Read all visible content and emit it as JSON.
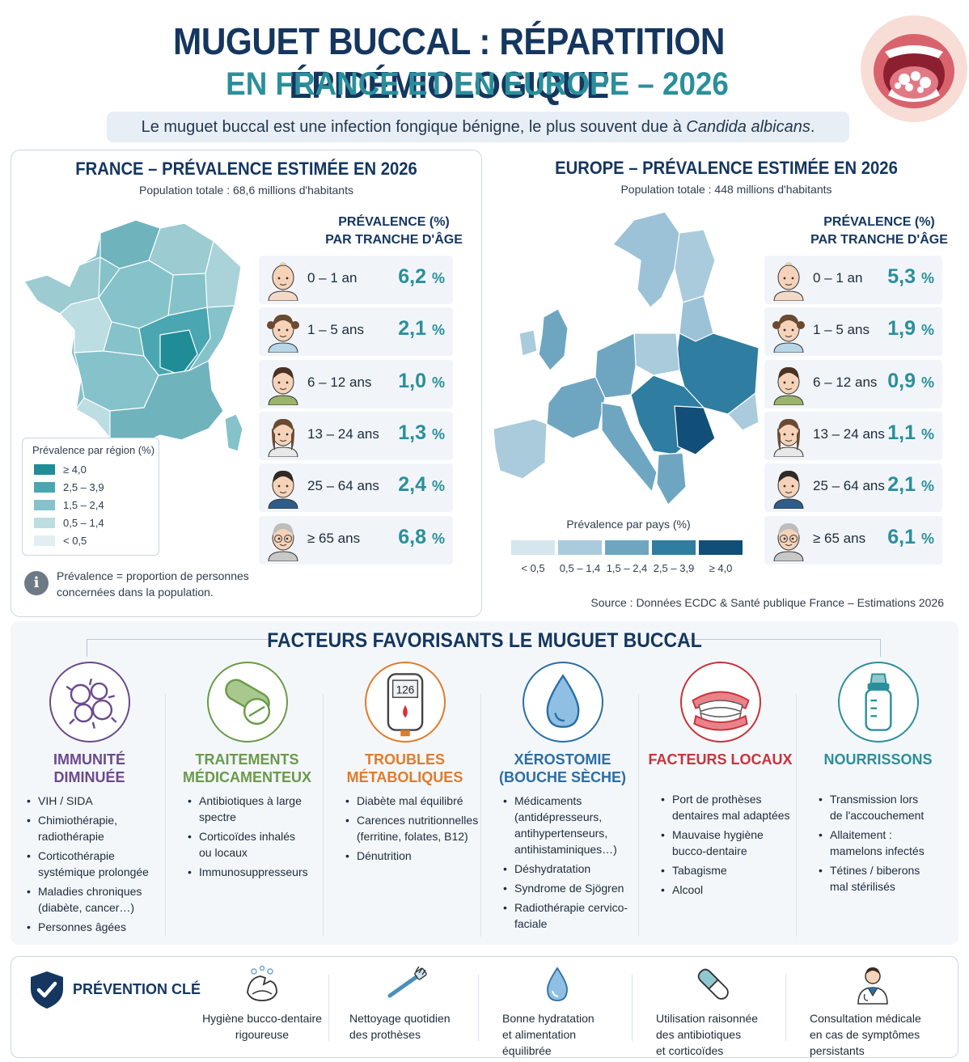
{
  "header": {
    "title_line1": "MUGUET BUCCAL : RÉPARTITION ÉPIDÉMIOLOGIQUE",
    "title_line2": "EN FRANCE ET EN EUROPE – 2026",
    "subtitle_prefix": "Le muguet buccal est une infection fongique bénigne, le plus souvent due à ",
    "subtitle_italic": "Candida albicans",
    "subtitle_suffix": "."
  },
  "france": {
    "title": "FRANCE – PRÉVALENCE ESTIMÉE EN 2026",
    "population": "Population totale : 68,6 millions d'habitants",
    "age_header_line1": "PRÉVALENCE (%)",
    "age_header_line2": "PAR TRANCHE D'ÂGE",
    "age_groups": [
      {
        "label": "0 – 1 an",
        "value": "6,2",
        "unit": "%"
      },
      {
        "label": "1 – 5 ans",
        "value": "2,1",
        "unit": "%"
      },
      {
        "label": "6 – 12 ans",
        "value": "1,0",
        "unit": "%"
      },
      {
        "label": "13 – 24 ans",
        "value": "1,3",
        "unit": "%"
      },
      {
        "label": "25 – 64 ans",
        "value": "2,4",
        "unit": "%"
      },
      {
        "label": "≥ 65 ans",
        "value": "6,8",
        "unit": "%"
      }
    ],
    "legend_title": "Prévalence par région (%)",
    "legend": [
      {
        "label": "≥ 4,0",
        "color": "#1f8c96"
      },
      {
        "label": "2,5 – 3,9",
        "color": "#4aa6b0"
      },
      {
        "label": "1,5 – 2,4",
        "color": "#86c2ca"
      },
      {
        "label": "0,5 – 1,4",
        "color": "#bcdde2"
      },
      {
        "label": "< 0,5",
        "color": "#e2eff2"
      }
    ],
    "note_line1": "Prévalence = proportion de personnes",
    "note_line2": "concernées dans la population."
  },
  "europe": {
    "title": "EUROPE – PRÉVALENCE ESTIMÉE EN 2026",
    "population": "Population totale : 448 millions d'habitants",
    "age_header_line1": "PRÉVALENCE (%)",
    "age_header_line2": "PAR TRANCHE D'ÂGE",
    "age_groups": [
      {
        "label": "0 – 1 an",
        "value": "5,3",
        "unit": "%"
      },
      {
        "label": "1 – 5 ans",
        "value": "1,9",
        "unit": "%"
      },
      {
        "label": "6 – 12 ans",
        "value": "0,9",
        "unit": "%"
      },
      {
        "label": "13 – 24 ans",
        "value": "1,1",
        "unit": "%"
      },
      {
        "label": "25 – 64 ans",
        "value": "2,1",
        "unit": "%"
      },
      {
        "label": "≥ 65 ans",
        "value": "6,1",
        "unit": "%"
      }
    ],
    "legend_title": "Prévalence par pays (%)",
    "legend": [
      {
        "label": "< 0,5",
        "color": "#d6e6ef"
      },
      {
        "label": "0,5 – 1,4",
        "color": "#a9cbdc"
      },
      {
        "label": "1,5 – 2,4",
        "color": "#6ea6c2"
      },
      {
        "label": "2,5 – 3,9",
        "color": "#2f7da0"
      },
      {
        "label": "≥ 4,0",
        "color": "#124f78"
      }
    ],
    "source": "Source : Données ECDC & Santé publique France – Estimations 2026"
  },
  "factors": {
    "title": "FACTEURS FAVORISANTS LE MUGUET BUCCAL",
    "items": [
      {
        "title_line1": "IMMUNITÉ",
        "title_line2": "DIMINUÉE",
        "color": "#6b4a8c",
        "icon": "virus-icon",
        "bullets": [
          [
            "VIH / SIDA"
          ],
          [
            "Chimiothérapie,",
            "radiothérapie"
          ],
          [
            "Corticothérapie",
            "systémique prolongée"
          ],
          [
            "Maladies chroniques",
            "(diabète, cancer…)"
          ],
          [
            "Personnes âgées"
          ]
        ]
      },
      {
        "title_line1": "TRAITEMENTS",
        "title_line2": "MÉDICAMENTEUX",
        "color": "#6a9a4a",
        "icon": "pill-icon",
        "bullets": [
          [
            "Antibiotiques à large",
            "spectre"
          ],
          [
            "Corticoïdes inhalés",
            "ou locaux"
          ],
          [
            "Immunosuppresseurs"
          ]
        ]
      },
      {
        "title_line1": "TROUBLES",
        "title_line2": "MÉTABOLIQUES",
        "color": "#e07b2a",
        "icon": "glucometer-icon",
        "glucose": "126",
        "bullets": [
          [
            "Diabète mal équilibré"
          ],
          [
            "Carences nutritionnelles",
            "(ferritine, folates, B12)"
          ],
          [
            "Dénutrition"
          ]
        ]
      },
      {
        "title_line1": "XÉROSTOMIE",
        "title_line2": "(BOUCHE SÈCHE)",
        "color": "#2a6ea5",
        "icon": "water-drop-icon",
        "bullets": [
          [
            "Médicaments",
            "(antidépresseurs,",
            "antihypertenseurs,",
            "antihistaminiques…)"
          ],
          [
            "Déshydratation"
          ],
          [
            "Syndrome de Sjögren"
          ],
          [
            "Radiothérapie cervico-",
            "faciale"
          ]
        ]
      },
      {
        "title_line1": "FACTEURS LOCAUX",
        "title_line2": "",
        "color": "#c8323a",
        "icon": "denture-icon",
        "bullets": [
          [
            "Port de prothèses",
            "dentaires mal adaptées"
          ],
          [
            "Mauvaise hygiène",
            "bucco-dentaire"
          ],
          [
            "Tabagisme"
          ],
          [
            "Alcool"
          ]
        ]
      },
      {
        "title_line1": "NOURRISSONS",
        "title_line2": "",
        "color": "#2a8f9b",
        "icon": "baby-bottle-icon",
        "bullets": [
          [
            "Transmission lors",
            "de l'accouchement"
          ],
          [
            "Allaitement :",
            "mamelons infectés"
          ],
          [
            "Tétines / biberons",
            "mal stérilisés"
          ]
        ]
      }
    ]
  },
  "prevention": {
    "title": "PRÉVENTION CLÉ",
    "items": [
      {
        "lines": [
          "Hygiène bucco-dentaire",
          "rigoureuse"
        ],
        "icon": "hand-washing-icon"
      },
      {
        "lines": [
          "Nettoyage quotidien",
          "des prothèses"
        ],
        "icon": "toothbrush-icon"
      },
      {
        "lines": [
          "Bonne hydratation",
          "et alimentation",
          "équilibrée"
        ],
        "icon": "water-drop-icon"
      },
      {
        "lines": [
          "Utilisation raisonnée",
          "des antibiotiques",
          "et corticoïdes"
        ],
        "icon": "capsule-icon"
      },
      {
        "lines": [
          "Consultation médicale",
          "en cas de symptômes",
          "persistants"
        ],
        "icon": "doctor-icon"
      }
    ]
  }
}
